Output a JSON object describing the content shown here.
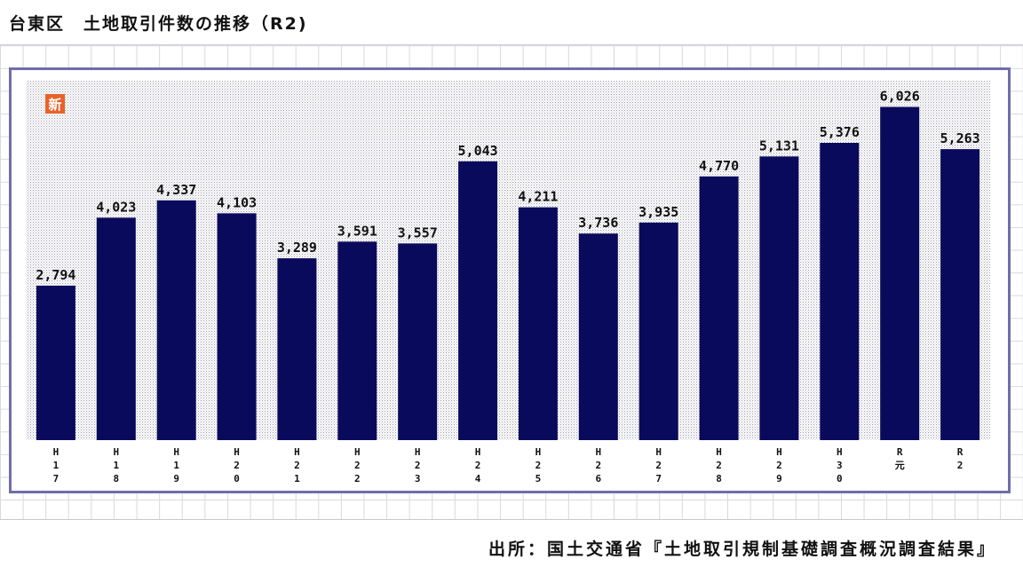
{
  "page": {
    "title": "台東区　土地取引件数の推移（R2)",
    "source": "出所：国土交通省『土地取引規制基礎調査概況調査結果』",
    "badge": "新"
  },
  "colors": {
    "bar": "#0a0a5c",
    "frame_border": "#6e6eaa",
    "badge_bg": "#e8622a",
    "plot_dots": "#9a9aaa"
  },
  "chart_data": {
    "type": "bar",
    "title": "台東区　土地取引件数の推移（R2)",
    "xlabel": "",
    "ylabel": "",
    "ylim": [
      0,
      6500
    ],
    "grid": false,
    "categories": [
      "H17",
      "H18",
      "H19",
      "H20",
      "H21",
      "H22",
      "H23",
      "H24",
      "H25",
      "H26",
      "H27",
      "H28",
      "H29",
      "H30",
      "R元",
      "R2"
    ],
    "values": [
      2794,
      4023,
      4337,
      4103,
      3289,
      3591,
      3557,
      5043,
      4211,
      3736,
      3935,
      4770,
      5131,
      5376,
      6026,
      5263
    ],
    "value_labels": [
      "2,794",
      "4,023",
      "4,337",
      "4,103",
      "3,289",
      "3,591",
      "3,557",
      "5,043",
      "4,211",
      "3,736",
      "3,935",
      "4,770",
      "5,131",
      "5,376",
      "6,026",
      "5,263"
    ]
  }
}
